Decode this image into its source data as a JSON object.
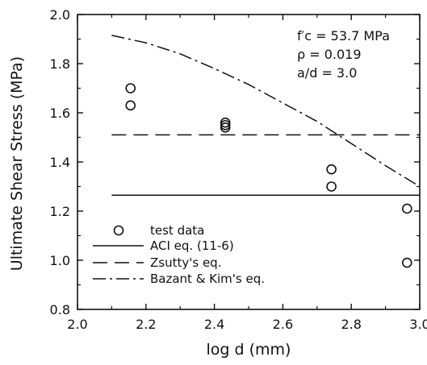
{
  "chart_data": {
    "type": "scatter",
    "xlabel": "log d  (mm)",
    "ylabel": "Ultimate Shear Stress (MPa)",
    "xlim": [
      2.0,
      3.0
    ],
    "ylim": [
      0.8,
      2.0
    ],
    "xticks": [
      "2.0",
      "2.2",
      "2.4",
      "2.6",
      "2.8",
      "3.0"
    ],
    "yticks": [
      "0.8",
      "1.0",
      "1.2",
      "1.4",
      "1.6",
      "1.8",
      "2.0"
    ],
    "grid": false,
    "annotations": {
      "fc": "f′c  =  53.7  MPa",
      "rho": "ρ  =  0.019",
      "ad": "a/d  =  3.0"
    },
    "legend_position": "bottom-left",
    "series": [
      {
        "name": "test data",
        "style": "circle",
        "x": [
          2.155,
          2.155,
          2.432,
          2.432,
          2.432,
          2.742,
          2.742,
          2.963,
          2.963
        ],
        "y": [
          1.7,
          1.63,
          1.56,
          1.55,
          1.54,
          1.37,
          1.3,
          1.21,
          0.99
        ]
      },
      {
        "name": "ACI eq. (11-6)",
        "style": "solid",
        "x": [
          2.1,
          3.0
        ],
        "y": [
          1.265,
          1.265
        ]
      },
      {
        "name": "Zsutty's eq.",
        "style": "dashed",
        "x": [
          2.1,
          3.0
        ],
        "y": [
          1.51,
          1.51
        ]
      },
      {
        "name": "Bazant & Kim's eq.",
        "style": "dashdot",
        "x": [
          2.1,
          2.2,
          2.3,
          2.4,
          2.5,
          2.6,
          2.7,
          2.8,
          2.9,
          3.0
        ],
        "y": [
          1.915,
          1.885,
          1.84,
          1.78,
          1.715,
          1.64,
          1.565,
          1.475,
          1.385,
          1.3
        ]
      }
    ]
  }
}
